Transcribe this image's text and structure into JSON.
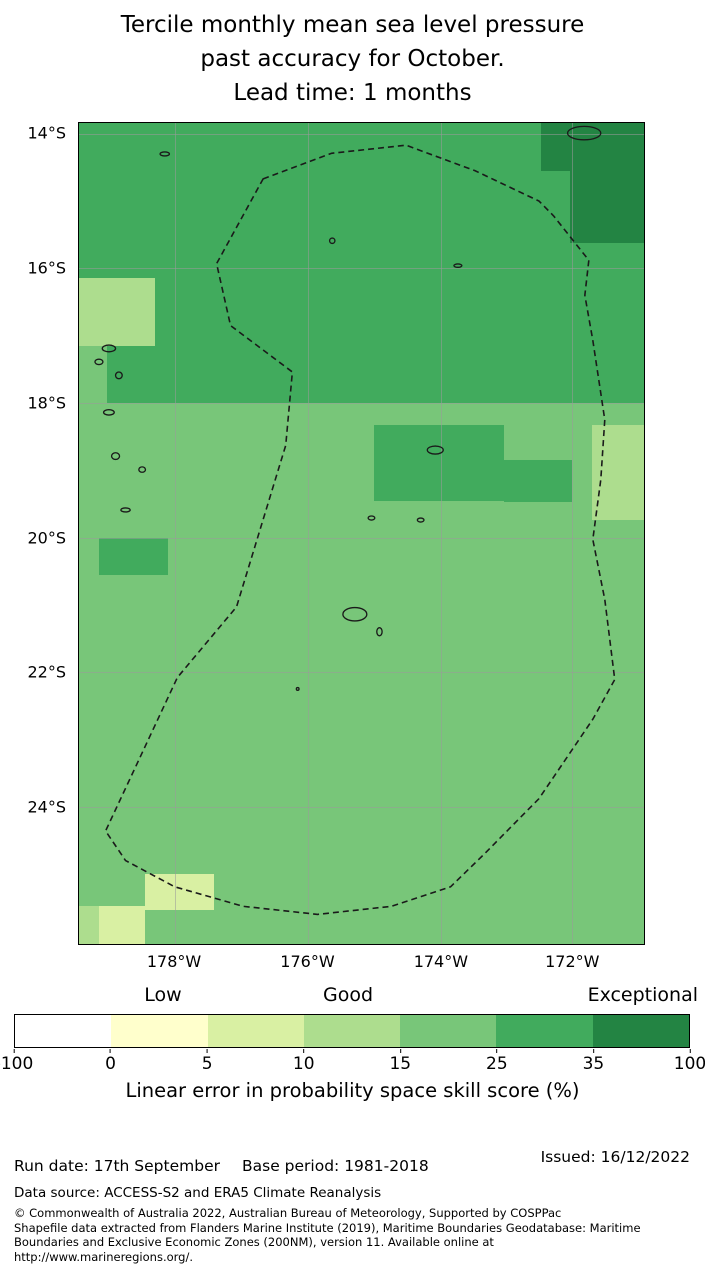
{
  "title": {
    "line1": "Tercile monthly mean sea level pressure",
    "line2": "past accuracy for October.",
    "line3": "Lead time: 1 months"
  },
  "chart_data": {
    "type": "heatmap",
    "title": "Tercile monthly mean sea level pressure past accuracy for October. Lead time: 1 months",
    "extent": {
      "width_deg": 8.5,
      "height_deg": 12.2
    },
    "axes": {
      "y_ticks": [
        "14°S",
        "16°S",
        "18°S",
        "20°S",
        "22°S",
        "24°S"
      ],
      "x_ticks": [
        "178°W",
        "176°W",
        "174°W",
        "172°W"
      ]
    },
    "grid": {
      "x_deg": [
        1.44,
        3.44,
        5.44,
        7.41
      ],
      "y_deg": [
        0.16,
        2.16,
        4.16,
        6.16,
        8.16,
        10.16
      ]
    },
    "base_color": "#78c679",
    "regions": [
      {
        "x": 0,
        "y": 0,
        "w": 8.5,
        "h": 4.16,
        "color": "#41ab5d"
      },
      {
        "x": 6.95,
        "y": 0,
        "w": 1.55,
        "h": 0.72,
        "color": "#238443"
      },
      {
        "x": 7.38,
        "y": 0,
        "w": 1.12,
        "h": 1.78,
        "color": "#238443"
      },
      {
        "x": 0,
        "y": 2.31,
        "w": 1.15,
        "h": 1.0,
        "color": "#addd8e"
      },
      {
        "x": 0,
        "y": 3.31,
        "w": 0.42,
        "h": 0.85,
        "color": "#78c679"
      },
      {
        "x": 4.44,
        "y": 4.49,
        "w": 1.95,
        "h": 1.12,
        "color": "#41ab5d"
      },
      {
        "x": 6.39,
        "y": 5.01,
        "w": 1.02,
        "h": 0.62,
        "color": "#41ab5d"
      },
      {
        "x": 0.3,
        "y": 6.16,
        "w": 1.04,
        "h": 0.56,
        "color": "#41ab5d"
      },
      {
        "x": 7.72,
        "y": 4.49,
        "w": 0.78,
        "h": 1.41,
        "color": "#addd8e"
      },
      {
        "x": 0.99,
        "y": 11.16,
        "w": 1.04,
        "h": 0.54,
        "color": "#d9f0a3"
      },
      {
        "x": 0.3,
        "y": 11.64,
        "w": 0.69,
        "h": 0.56,
        "color": "#d9f0a3"
      },
      {
        "x": 0,
        "y": 11.64,
        "w": 0.3,
        "h": 0.56,
        "color": "#addd8e"
      }
    ],
    "boundary": [
      [
        2.77,
        0.83
      ],
      [
        3.8,
        0.45
      ],
      [
        4.92,
        0.33
      ],
      [
        5.96,
        0.71
      ],
      [
        6.92,
        1.16
      ],
      [
        7.14,
        1.38
      ],
      [
        7.67,
        2.04
      ],
      [
        7.61,
        2.56
      ],
      [
        7.73,
        3.23
      ],
      [
        7.91,
        4.41
      ],
      [
        7.85,
        5.3
      ],
      [
        7.73,
        6.19
      ],
      [
        7.91,
        7.08
      ],
      [
        8.06,
        8.27
      ],
      [
        7.73,
        8.86
      ],
      [
        6.92,
        10.04
      ],
      [
        6.1,
        10.86
      ],
      [
        5.59,
        11.35
      ],
      [
        4.7,
        11.64
      ],
      [
        3.59,
        11.76
      ],
      [
        2.47,
        11.64
      ],
      [
        1.44,
        11.35
      ],
      [
        0.7,
        10.96
      ],
      [
        0.4,
        10.52
      ],
      [
        1.48,
        8.24
      ],
      [
        2.37,
        7.19
      ],
      [
        3.11,
        4.79
      ],
      [
        3.21,
        3.7
      ],
      [
        2.28,
        3.01
      ],
      [
        2.07,
        2.09
      ]
    ],
    "islands": [
      [
        1.29,
        0.46,
        0.07,
        0.03
      ],
      [
        3.81,
        1.75,
        0.04,
        0.04
      ],
      [
        5.7,
        2.12,
        0.06,
        0.025
      ],
      [
        0.45,
        3.35,
        0.1,
        0.05
      ],
      [
        0.3,
        3.55,
        0.06,
        0.04
      ],
      [
        0.6,
        3.75,
        0.05,
        0.05
      ],
      [
        0.45,
        4.3,
        0.08,
        0.04
      ],
      [
        0.55,
        4.95,
        0.06,
        0.05
      ],
      [
        0.95,
        5.15,
        0.05,
        0.04
      ],
      [
        0.7,
        5.75,
        0.07,
        0.03
      ],
      [
        5.36,
        4.86,
        0.12,
        0.06
      ],
      [
        4.4,
        5.87,
        0.05,
        0.03
      ],
      [
        5.14,
        5.9,
        0.05,
        0.03
      ],
      [
        4.15,
        7.3,
        0.18,
        0.1
      ],
      [
        4.52,
        7.56,
        0.04,
        0.06
      ],
      [
        3.29,
        8.41,
        0.02,
        0.02
      ],
      [
        7.6,
        0.15,
        0.25,
        0.1
      ]
    ],
    "colorbar": {
      "labels": [
        "Low",
        "Good",
        "Exceptional"
      ],
      "ticks": [
        "-100",
        "0",
        "5",
        "10",
        "15",
        "25",
        "35",
        "100"
      ],
      "colors": [
        "#ffffff",
        "#ffffcc",
        "#d9f0a3",
        "#addd8e",
        "#78c679",
        "#41ab5d",
        "#238443"
      ],
      "caption": "Linear error in probability space skill score (%)"
    }
  },
  "footer": {
    "run_date": "Run date: 17th September",
    "base_period": "Base period: 1981-2018",
    "issued": "Issued: 16/12/2022",
    "data_source": "Data source: ACCESS-S2 and ERA5 Climate Reanalysis",
    "copyright": [
      "© Commonwealth of Australia 2022, Australian Bureau of Meteorology, Supported by COSPPac",
      "Shapefile data extracted from Flanders Marine Institute (2019), Maritime Boundaries Geodatabase: Maritime",
      "Boundaries and Exclusive Economic Zones (200NM), version 11. Available online at",
      "http://www.marineregions.org/."
    ]
  }
}
